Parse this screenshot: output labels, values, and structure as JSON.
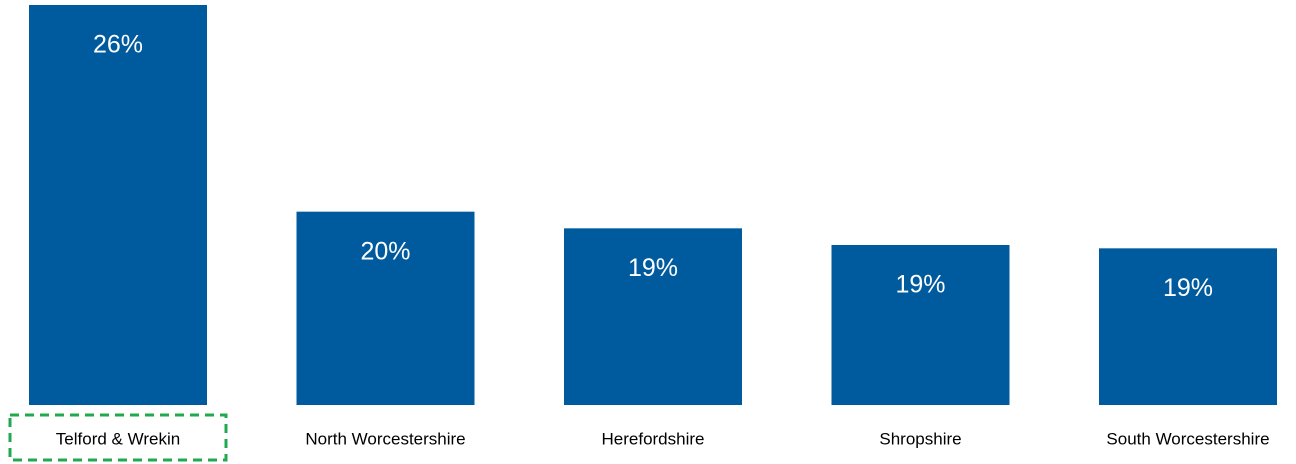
{
  "chart_data": {
    "type": "bar",
    "categories": [
      "Telford & Wrekin",
      "North Worcestershire",
      "Herefordshire",
      "Shropshire",
      "South Worcestershire"
    ],
    "values": [
      26,
      19.8,
      19.3,
      18.8,
      18.7
    ],
    "value_labels": [
      "26%",
      "20%",
      "19%",
      "19%",
      "19%"
    ],
    "color": "#005a9e",
    "ylim": [
      14,
      26
    ],
    "highlight": "Telford & Wrekin",
    "highlight_color": "#21a94f"
  }
}
